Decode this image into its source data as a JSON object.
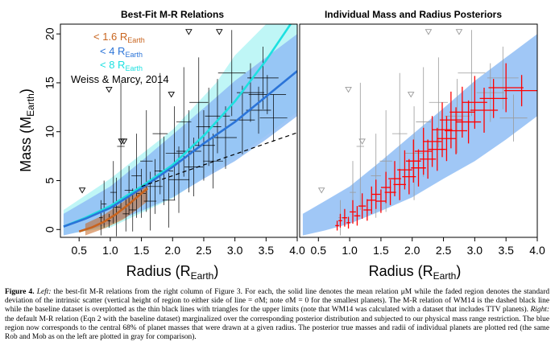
{
  "colors": {
    "small": "#c8641e",
    "medium": "#2b74d8",
    "large": "#1de0e0",
    "band_medium": "#8fbdf4",
    "band_large": "#b4f4f4",
    "posterior": "#ff0000",
    "gray": "#9a9a9a"
  },
  "chart_data": [
    {
      "type": "line",
      "title": "Best-Fit M-R Relations",
      "xlabel_main": "Radius (R",
      "xlabel_sub": "Earth",
      "xlabel_end": ")",
      "ylabel_main": "Mass (M",
      "ylabel_sub": "Earth",
      "ylabel_end": ")",
      "xlim": [
        0.2,
        4.0
      ],
      "ylim": [
        -0.8,
        21.0
      ],
      "xticks": [
        0.5,
        1.0,
        1.5,
        2.0,
        2.5,
        3.0,
        3.5,
        4.0
      ],
      "xtick_labels": [
        "0.5",
        "1.0",
        "1.5",
        "2.0",
        "2.5",
        "3.0",
        "3.5",
        "4.0"
      ],
      "yticks": [
        0,
        5,
        10,
        15,
        20
      ],
      "ytick_labels": [
        "0",
        "5",
        "10",
        "15",
        "20"
      ],
      "legend": [
        {
          "prefix": "< 1.6 R",
          "sub": "Earth",
          "color_key": "small"
        },
        {
          "prefix": "< 4 R",
          "sub": "Earth",
          "color_key": "medium"
        },
        {
          "prefix": "< 8 R",
          "sub": "Earth",
          "color_key": "large"
        },
        {
          "prefix": "Weiss & Marcy, 2014",
          "sub": "",
          "color_key": "black"
        }
      ],
      "series": [
        {
          "color_key": "large",
          "x": [
            0.25,
            0.6,
            1.0,
            1.5,
            2.0,
            2.5,
            3.0,
            3.5,
            4.0
          ],
          "y": [
            0.3,
            1.2,
            2.4,
            4.4,
            6.6,
            9.6,
            13.1,
            17.3,
            22.0
          ]
        },
        {
          "color_key": "medium",
          "x": [
            0.25,
            0.6,
            1.0,
            1.5,
            2.0,
            2.5,
            3.0,
            3.5,
            4.0
          ],
          "y": [
            0.3,
            1.1,
            2.2,
            4.2,
            6.4,
            8.8,
            11.0,
            13.6,
            16.2
          ]
        },
        {
          "color_key": "small",
          "x": [
            0.5,
            0.7,
            0.9,
            1.1,
            1.3,
            1.5,
            1.6
          ],
          "y": [
            -0.2,
            0.2,
            0.8,
            1.6,
            2.6,
            3.7,
            4.2
          ]
        },
        {
          "color_key": "black",
          "dashed": true,
          "x": [
            1.5,
            2.0,
            2.5,
            3.0,
            3.5,
            4.0
          ],
          "y": [
            4.4,
            5.5,
            6.6,
            7.7,
            8.8,
            9.9
          ]
        }
      ],
      "bands": [
        {
          "color_key": "band_large",
          "x": [
            0.25,
            1.0,
            2.0,
            2.7,
            3.0,
            3.5,
            4.0
          ],
          "lo": [
            -0.5,
            0.2,
            3.2,
            6.2,
            7.4,
            9.6,
            12.0
          ],
          "hi": [
            2.0,
            5.2,
            10.2,
            15.0,
            17.8,
            21.0,
            22.0
          ]
        },
        {
          "color_key": "band_medium",
          "x": [
            0.25,
            0.6,
            1.0,
            1.5,
            2.0,
            2.5,
            3.0,
            3.5,
            4.0
          ],
          "lo": [
            -0.6,
            -0.1,
            0.6,
            1.9,
            3.3,
            5.2,
            7.0,
            9.2,
            11.6
          ],
          "hi": [
            1.6,
            2.9,
            4.4,
            7.0,
            9.7,
            12.4,
            15.2,
            17.6,
            20.0
          ]
        },
        {
          "color_key": "small",
          "x": [
            0.6,
            0.9,
            1.2,
            1.4,
            1.6
          ],
          "lo": [
            -0.6,
            0.1,
            1.0,
            1.9,
            2.9
          ],
          "hi": [
            0.6,
            1.5,
            2.8,
            3.8,
            5.0
          ]
        }
      ],
      "points": [
        {
          "x": 0.85,
          "y": 1.2,
          "xerr": 0.03,
          "yerr": 1.8
        },
        {
          "x": 0.9,
          "y": 2.6,
          "xerr": 0.04,
          "yerr": 2.4
        },
        {
          "x": 0.98,
          "y": 0.9,
          "xerr": 0.03,
          "yerr": 0.7
        },
        {
          "x": 1.05,
          "y": 3.8,
          "xerr": 0.05,
          "yerr": 3.2
        },
        {
          "x": 1.1,
          "y": 2.3,
          "xerr": 0.06,
          "yerr": 3.0
        },
        {
          "x": 1.17,
          "y": 8.5,
          "xerr": 0.06,
          "yerr": 6.5
        },
        {
          "x": 1.25,
          "y": 1.6,
          "xerr": 0.05,
          "yerr": 1.8
        },
        {
          "x": 1.3,
          "y": 4.0,
          "xerr": 0.07,
          "yerr": 2.5
        },
        {
          "x": 1.36,
          "y": 2.0,
          "xerr": 0.06,
          "yerr": 2.2
        },
        {
          "x": 1.42,
          "y": 5.5,
          "xerr": 0.08,
          "yerr": 4.3
        },
        {
          "x": 1.5,
          "y": 3.7,
          "xerr": 0.07,
          "yerr": 2.5
        },
        {
          "x": 1.58,
          "y": 7.0,
          "xerr": 0.1,
          "yerr": 5.2
        },
        {
          "x": 1.64,
          "y": 2.9,
          "xerr": 0.1,
          "yerr": 3.0
        },
        {
          "x": 1.72,
          "y": 4.4,
          "xerr": 0.12,
          "yerr": 2.8
        },
        {
          "x": 1.8,
          "y": 9.8,
          "xerr": 0.12,
          "yerr": 6.2
        },
        {
          "x": 1.86,
          "y": 6.0,
          "xerr": 0.15,
          "yerr": 3.5
        },
        {
          "x": 1.94,
          "y": 3.0,
          "xerr": 0.1,
          "yerr": 2.8
        },
        {
          "x": 2.03,
          "y": 7.8,
          "xerr": 0.14,
          "yerr": 4.8
        },
        {
          "x": 2.1,
          "y": 5.1,
          "xerr": 0.17,
          "yerr": 3.4
        },
        {
          "x": 2.18,
          "y": 11.0,
          "xerr": 0.12,
          "yerr": 5.6
        },
        {
          "x": 2.26,
          "y": 8.0,
          "xerr": 0.2,
          "yerr": 4.2
        },
        {
          "x": 2.34,
          "y": 6.4,
          "xerr": 0.15,
          "yerr": 3.0
        },
        {
          "x": 2.42,
          "y": 13.0,
          "xerr": 0.15,
          "yerr": 4.6
        },
        {
          "x": 2.5,
          "y": 8.6,
          "xerr": 0.18,
          "yerr": 3.6
        },
        {
          "x": 2.58,
          "y": 10.5,
          "xerr": 0.2,
          "yerr": 4.0
        },
        {
          "x": 2.65,
          "y": 7.0,
          "xerr": 0.16,
          "yerr": 2.8
        },
        {
          "x": 2.72,
          "y": 11.6,
          "xerr": 0.2,
          "yerr": 3.8
        },
        {
          "x": 2.85,
          "y": 9.4,
          "xerr": 0.18,
          "yerr": 3.2
        },
        {
          "x": 2.95,
          "y": 16.0,
          "xerr": 0.22,
          "yerr": 4.4
        },
        {
          "x": 3.12,
          "y": 11.2,
          "xerr": 0.2,
          "yerr": 3.5
        },
        {
          "x": 3.25,
          "y": 14.0,
          "xerr": 0.22,
          "yerr": 3.0
        },
        {
          "x": 3.38,
          "y": 12.2,
          "xerr": 0.2,
          "yerr": 2.4
        },
        {
          "x": 3.45,
          "y": 15.5,
          "xerr": 0.25,
          "yerr": 3.2
        },
        {
          "x": 3.52,
          "y": 13.8,
          "xerr": 0.3,
          "yerr": 2.0
        },
        {
          "x": 3.62,
          "y": 11.4,
          "xerr": 0.22,
          "yerr": 2.4
        }
      ],
      "upper_limits": [
        {
          "x": 0.55,
          "y": 4.0
        },
        {
          "x": 0.98,
          "y": 14.3
        },
        {
          "x": 1.18,
          "y": 9.0
        },
        {
          "x": 1.22,
          "y": 9.0
        },
        {
          "x": 1.98,
          "y": 13.8
        },
        {
          "x": 2.26,
          "y": 20.2
        },
        {
          "x": 2.75,
          "y": 20.2
        }
      ]
    },
    {
      "type": "scatter",
      "title": "Individual Mass and Radius Posteriors",
      "xlabel_main": "Radius (R",
      "xlabel_sub": "Earth",
      "xlabel_end": ")",
      "xlim": [
        0.2,
        4.0
      ],
      "ylim": [
        -0.8,
        21.0
      ],
      "xticks": [
        0.5,
        1.0,
        1.5,
        2.0,
        2.5,
        3.0,
        3.5,
        4.0
      ],
      "xtick_labels": [
        "0.5",
        "1.0",
        "1.5",
        "2.0",
        "2.5",
        "3.0",
        "3.5",
        "4.0"
      ],
      "band": {
        "color_key": "band_medium",
        "x": [
          0.25,
          0.6,
          1.0,
          1.5,
          2.0,
          2.5,
          3.0,
          3.5,
          4.0
        ],
        "lo": [
          -0.6,
          -0.1,
          0.6,
          1.9,
          3.3,
          5.2,
          7.0,
          9.2,
          11.6
        ],
        "hi": [
          1.6,
          2.9,
          4.4,
          7.0,
          9.7,
          12.4,
          15.2,
          17.6,
          20.0
        ]
      },
      "posterior_points": [
        {
          "x": 0.8,
          "y": 0.4,
          "xerr": 0.03,
          "yerr": 0.5
        },
        {
          "x": 0.85,
          "y": 0.9,
          "xerr": 0.03,
          "yerr": 0.7
        },
        {
          "x": 0.92,
          "y": 1.2,
          "xerr": 0.04,
          "yerr": 0.9
        },
        {
          "x": 0.98,
          "y": 0.7,
          "xerr": 0.03,
          "yerr": 0.6
        },
        {
          "x": 1.05,
          "y": 1.8,
          "xerr": 0.05,
          "yerr": 1.2
        },
        {
          "x": 1.12,
          "y": 1.4,
          "xerr": 0.05,
          "yerr": 1.0
        },
        {
          "x": 1.2,
          "y": 2.4,
          "xerr": 0.06,
          "yerr": 1.3
        },
        {
          "x": 1.28,
          "y": 2.0,
          "xerr": 0.06,
          "yerr": 1.1
        },
        {
          "x": 1.35,
          "y": 3.0,
          "xerr": 0.07,
          "yerr": 1.4
        },
        {
          "x": 1.42,
          "y": 3.6,
          "xerr": 0.07,
          "yerr": 1.5
        },
        {
          "x": 1.5,
          "y": 2.9,
          "xerr": 0.08,
          "yerr": 1.2
        },
        {
          "x": 1.58,
          "y": 4.3,
          "xerr": 0.08,
          "yerr": 1.6
        },
        {
          "x": 1.65,
          "y": 3.8,
          "xerr": 0.09,
          "yerr": 1.3
        },
        {
          "x": 1.72,
          "y": 5.2,
          "xerr": 0.1,
          "yerr": 1.8
        },
        {
          "x": 1.8,
          "y": 4.6,
          "xerr": 0.1,
          "yerr": 1.6
        },
        {
          "x": 1.88,
          "y": 6.1,
          "xerr": 0.12,
          "yerr": 2.0
        },
        {
          "x": 1.95,
          "y": 5.4,
          "xerr": 0.11,
          "yerr": 1.8
        },
        {
          "x": 2.02,
          "y": 7.0,
          "xerr": 0.12,
          "yerr": 2.2
        },
        {
          "x": 2.1,
          "y": 6.3,
          "xerr": 0.12,
          "yerr": 1.9
        },
        {
          "x": 2.18,
          "y": 8.0,
          "xerr": 0.14,
          "yerr": 2.4
        },
        {
          "x": 2.25,
          "y": 7.2,
          "xerr": 0.13,
          "yerr": 2.0
        },
        {
          "x": 2.32,
          "y": 9.0,
          "xerr": 0.15,
          "yerr": 2.6
        },
        {
          "x": 2.4,
          "y": 8.2,
          "xerr": 0.14,
          "yerr": 2.2
        },
        {
          "x": 2.48,
          "y": 10.2,
          "xerr": 0.16,
          "yerr": 2.8
        },
        {
          "x": 2.55,
          "y": 9.3,
          "xerr": 0.15,
          "yerr": 2.3
        },
        {
          "x": 2.62,
          "y": 11.2,
          "xerr": 0.18,
          "yerr": 2.9
        },
        {
          "x": 2.7,
          "y": 10.1,
          "xerr": 0.18,
          "yerr": 2.4
        },
        {
          "x": 2.8,
          "y": 12.0,
          "xerr": 0.2,
          "yerr": 2.6
        },
        {
          "x": 2.9,
          "y": 11.0,
          "xerr": 0.2,
          "yerr": 2.2
        },
        {
          "x": 3.0,
          "y": 13.0,
          "xerr": 0.2,
          "yerr": 2.7
        },
        {
          "x": 3.15,
          "y": 12.2,
          "xerr": 0.22,
          "yerr": 2.3
        },
        {
          "x": 3.3,
          "y": 13.4,
          "xerr": 0.22,
          "yerr": 2.0
        },
        {
          "x": 3.5,
          "y": 14.5,
          "xerr": 0.28,
          "yerr": 2.5
        },
        {
          "x": 3.75,
          "y": 14.2,
          "xerr": 0.28,
          "yerr": 1.6
        }
      ],
      "gray_points": [
        {
          "x": 0.85,
          "y": 1.2,
          "xerr": 0.03,
          "yerr": 1.8
        },
        {
          "x": 1.05,
          "y": 3.8,
          "xerr": 0.05,
          "yerr": 3.2
        },
        {
          "x": 1.17,
          "y": 8.5,
          "xerr": 0.06,
          "yerr": 6.5
        },
        {
          "x": 1.42,
          "y": 5.5,
          "xerr": 0.08,
          "yerr": 4.3
        },
        {
          "x": 1.58,
          "y": 7.0,
          "xerr": 0.1,
          "yerr": 5.2
        },
        {
          "x": 1.8,
          "y": 9.8,
          "xerr": 0.12,
          "yerr": 6.2
        },
        {
          "x": 2.03,
          "y": 7.8,
          "xerr": 0.14,
          "yerr": 4.8
        },
        {
          "x": 2.18,
          "y": 11.0,
          "xerr": 0.12,
          "yerr": 5.6
        },
        {
          "x": 2.42,
          "y": 13.0,
          "xerr": 0.15,
          "yerr": 4.6
        },
        {
          "x": 2.72,
          "y": 11.6,
          "xerr": 0.2,
          "yerr": 3.8
        },
        {
          "x": 2.95,
          "y": 16.0,
          "xerr": 0.22,
          "yerr": 4.4
        },
        {
          "x": 3.25,
          "y": 14.0,
          "xerr": 0.22,
          "yerr": 3.0
        },
        {
          "x": 3.45,
          "y": 15.5,
          "xerr": 0.25,
          "yerr": 3.2
        },
        {
          "x": 3.62,
          "y": 11.4,
          "xerr": 0.22,
          "yerr": 2.4
        }
      ],
      "upper_limits": [
        {
          "x": 0.55,
          "y": 4.0
        },
        {
          "x": 0.98,
          "y": 14.3
        },
        {
          "x": 1.2,
          "y": 9.0
        },
        {
          "x": 1.98,
          "y": 13.8
        },
        {
          "x": 2.26,
          "y": 20.2
        },
        {
          "x": 2.75,
          "y": 20.2
        }
      ]
    }
  ],
  "caption": {
    "label": "Figure 4.",
    "left_label": "Left:",
    "p1": "the best-fit M-R relations from the right column of Figure 3. For each, the solid line denotes the mean relation μM while the faded region denotes the standard deviation of the intrinsic scatter (vertical height of region to either side of line = σM; note σM = 0 for the smallest planets). The M-R relation of WM14 is the dashed black line while the baseline dataset is overplotted as the thin black lines with triangles for the upper limits (note that WM14 was calculated with a dataset that includes TTV planets).",
    "right_label": "Right:",
    "p2": "the default M-R relation (Eqn 2 with the baseline dataset) marginalized over the corresponding posterior distribution and subjected to our physical mass range restriction. The blue region now corresponds to the central 68% of planet masses that were drawn at a given radius. The posterior true masses and radii of individual planets are plotted red (the same Rob and Mob as on the left are plotted in gray for comparison)."
  }
}
